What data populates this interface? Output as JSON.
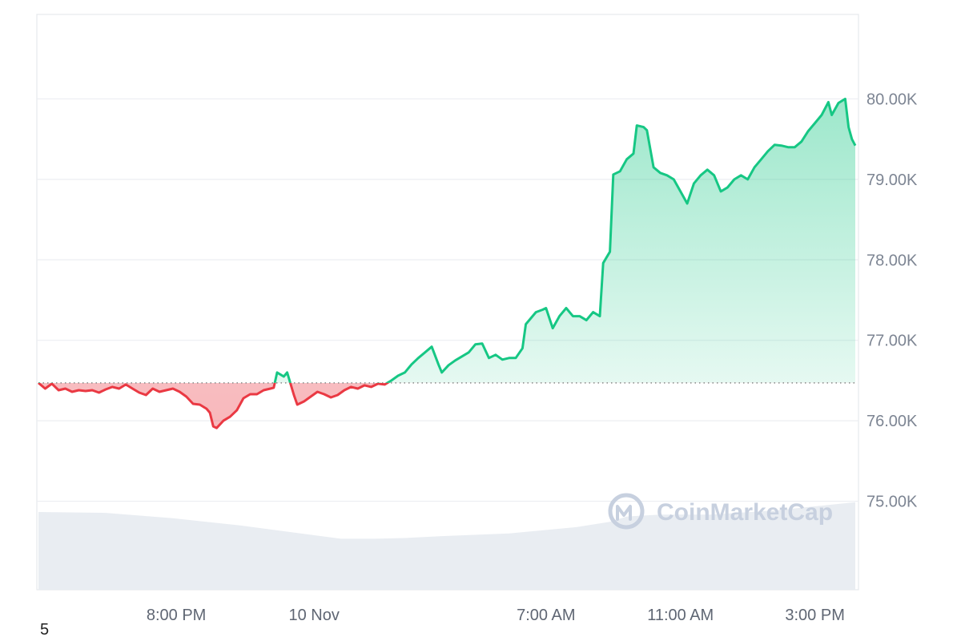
{
  "watermark": "CoinMarketCap",
  "page_number": "5",
  "colors": {
    "up": "#16c784",
    "down": "#ea3943",
    "grid": "#eceef2",
    "volume": "#e7ebf1",
    "watermark": "#c7d0df",
    "baseline": "#888888"
  },
  "chart_data": {
    "type": "area",
    "title": "",
    "xlabel": "",
    "ylabel": "",
    "ylim": [
      73900,
      81050
    ],
    "y_ticks": [
      {
        "value": 75000,
        "label": "75.00K"
      },
      {
        "value": 76000,
        "label": "76.00K"
      },
      {
        "value": 77000,
        "label": "77.00K"
      },
      {
        "value": 78000,
        "label": "78.00K"
      },
      {
        "value": 79000,
        "label": "79.00K"
      },
      {
        "value": 80000,
        "label": "80.00K"
      }
    ],
    "x_range_hours": [
      0,
      24.3
    ],
    "x_ticks": [
      {
        "t": 4.1,
        "label": "8:00 PM"
      },
      {
        "t": 8.2,
        "label": "10 Nov"
      },
      {
        "t": 15.1,
        "label": "7:00 AM"
      },
      {
        "t": 19.1,
        "label": "11:00 AM"
      },
      {
        "t": 23.1,
        "label": "3:00 PM"
      }
    ],
    "baseline": 76470,
    "grid": true,
    "series": [
      {
        "points": [
          [
            0.0,
            76470
          ],
          [
            0.2,
            76400
          ],
          [
            0.4,
            76460
          ],
          [
            0.6,
            76380
          ],
          [
            0.8,
            76400
          ],
          [
            1.0,
            76360
          ],
          [
            1.2,
            76380
          ],
          [
            1.4,
            76370
          ],
          [
            1.6,
            76380
          ],
          [
            1.8,
            76350
          ],
          [
            2.0,
            76390
          ],
          [
            2.2,
            76420
          ],
          [
            2.4,
            76400
          ],
          [
            2.6,
            76450
          ],
          [
            2.8,
            76400
          ],
          [
            3.0,
            76350
          ],
          [
            3.2,
            76320
          ],
          [
            3.4,
            76400
          ],
          [
            3.6,
            76360
          ],
          [
            3.8,
            76380
          ],
          [
            4.0,
            76400
          ],
          [
            4.2,
            76360
          ],
          [
            4.4,
            76300
          ],
          [
            4.6,
            76210
          ],
          [
            4.8,
            76200
          ],
          [
            5.0,
            76150
          ],
          [
            5.1,
            76100
          ],
          [
            5.2,
            75930
          ],
          [
            5.3,
            75910
          ],
          [
            5.5,
            76000
          ],
          [
            5.7,
            76050
          ],
          [
            5.9,
            76130
          ],
          [
            6.1,
            76280
          ],
          [
            6.3,
            76330
          ],
          [
            6.5,
            76330
          ],
          [
            6.7,
            76380
          ],
          [
            6.9,
            76400
          ],
          [
            7.0,
            76410
          ],
          [
            7.1,
            76600
          ],
          [
            7.3,
            76550
          ],
          [
            7.4,
            76600
          ],
          [
            7.6,
            76320
          ],
          [
            7.7,
            76200
          ],
          [
            7.9,
            76240
          ],
          [
            8.1,
            76300
          ],
          [
            8.3,
            76360
          ],
          [
            8.5,
            76330
          ],
          [
            8.7,
            76290
          ],
          [
            8.9,
            76320
          ],
          [
            9.1,
            76380
          ],
          [
            9.3,
            76420
          ],
          [
            9.5,
            76400
          ],
          [
            9.7,
            76440
          ],
          [
            9.9,
            76420
          ],
          [
            10.1,
            76460
          ],
          [
            10.3,
            76450
          ],
          [
            10.5,
            76500
          ],
          [
            10.7,
            76560
          ],
          [
            10.9,
            76600
          ],
          [
            11.1,
            76700
          ],
          [
            11.3,
            76780
          ],
          [
            11.5,
            76850
          ],
          [
            11.7,
            76920
          ],
          [
            11.9,
            76700
          ],
          [
            12.0,
            76600
          ],
          [
            12.2,
            76690
          ],
          [
            12.4,
            76750
          ],
          [
            12.6,
            76800
          ],
          [
            12.8,
            76850
          ],
          [
            13.0,
            76950
          ],
          [
            13.2,
            76960
          ],
          [
            13.4,
            76780
          ],
          [
            13.6,
            76820
          ],
          [
            13.8,
            76760
          ],
          [
            14.0,
            76780
          ],
          [
            14.2,
            76780
          ],
          [
            14.4,
            76900
          ],
          [
            14.5,
            77200
          ],
          [
            14.7,
            77300
          ],
          [
            14.8,
            77350
          ],
          [
            15.0,
            77380
          ],
          [
            15.1,
            77400
          ],
          [
            15.3,
            77150
          ],
          [
            15.5,
            77300
          ],
          [
            15.7,
            77400
          ],
          [
            15.9,
            77300
          ],
          [
            16.1,
            77300
          ],
          [
            16.3,
            77250
          ],
          [
            16.5,
            77350
          ],
          [
            16.7,
            77300
          ],
          [
            16.8,
            77960
          ],
          [
            17.0,
            78100
          ],
          [
            17.1,
            79060
          ],
          [
            17.3,
            79100
          ],
          [
            17.5,
            79250
          ],
          [
            17.7,
            79320
          ],
          [
            17.8,
            79670
          ],
          [
            18.0,
            79650
          ],
          [
            18.1,
            79610
          ],
          [
            18.3,
            79150
          ],
          [
            18.5,
            79080
          ],
          [
            18.7,
            79050
          ],
          [
            18.9,
            79000
          ],
          [
            19.1,
            78850
          ],
          [
            19.3,
            78700
          ],
          [
            19.5,
            78950
          ],
          [
            19.7,
            79050
          ],
          [
            19.9,
            79120
          ],
          [
            20.1,
            79050
          ],
          [
            20.3,
            78850
          ],
          [
            20.5,
            78900
          ],
          [
            20.7,
            79000
          ],
          [
            20.9,
            79050
          ],
          [
            21.1,
            79000
          ],
          [
            21.3,
            79150
          ],
          [
            21.5,
            79250
          ],
          [
            21.7,
            79350
          ],
          [
            21.9,
            79430
          ],
          [
            22.1,
            79420
          ],
          [
            22.3,
            79400
          ],
          [
            22.5,
            79400
          ],
          [
            22.7,
            79470
          ],
          [
            22.9,
            79600
          ],
          [
            23.1,
            79700
          ],
          [
            23.3,
            79800
          ],
          [
            23.5,
            79960
          ],
          [
            23.6,
            79800
          ],
          [
            23.8,
            79950
          ],
          [
            24.0,
            80000
          ],
          [
            24.1,
            79650
          ],
          [
            24.2,
            79500
          ],
          [
            24.3,
            79420
          ]
        ]
      }
    ],
    "volume_series": {
      "note_units": "relative",
      "points": [
        [
          0.0,
          0.87
        ],
        [
          2.0,
          0.86
        ],
        [
          4.0,
          0.8
        ],
        [
          6.0,
          0.72
        ],
        [
          8.0,
          0.62
        ],
        [
          9.0,
          0.57
        ],
        [
          10.0,
          0.57
        ],
        [
          11.0,
          0.58
        ],
        [
          12.0,
          0.6
        ],
        [
          14.0,
          0.63
        ],
        [
          16.0,
          0.7
        ],
        [
          17.0,
          0.76
        ],
        [
          17.5,
          0.82
        ],
        [
          18.5,
          0.84
        ],
        [
          20.0,
          0.84
        ],
        [
          22.0,
          0.89
        ],
        [
          24.3,
          0.98
        ]
      ]
    }
  }
}
